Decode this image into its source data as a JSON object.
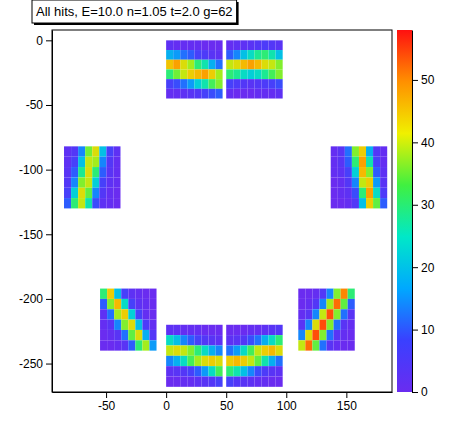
{
  "chart_data": {
    "type": "heatmap",
    "title": "All hits, E=10.0 n=1.05 t=2.0 g=62",
    "xlim": [
      -95,
      188
    ],
    "xticks": [
      -50,
      0,
      50,
      100,
      150
    ],
    "ylim": [
      -272,
      8
    ],
    "yticks": [
      0,
      -50,
      -100,
      -150,
      -200,
      -250
    ],
    "colorbar": {
      "zlim": [
        0,
        58
      ],
      "zticks": [
        0,
        10,
        20,
        30,
        40,
        50
      ]
    },
    "panels": [
      {
        "x": [
          0,
          47
        ],
        "y": [
          -45,
          0
        ],
        "cells": [
          [
            2,
            1,
            1,
            1,
            1,
            0,
            0,
            0
          ],
          [
            18,
            16,
            12,
            10,
            6,
            5,
            3,
            2
          ],
          [
            45,
            48,
            42,
            38,
            30,
            26,
            18,
            12
          ],
          [
            30,
            35,
            40,
            44,
            46,
            48,
            44,
            38
          ],
          [
            6,
            8,
            12,
            16,
            22,
            26,
            32,
            36
          ],
          [
            1,
            1,
            2,
            3,
            4,
            6,
            8,
            10
          ]
        ]
      },
      {
        "x": [
          50,
          97
        ],
        "y": [
          -45,
          0
        ],
        "cells": [
          [
            1,
            2,
            2,
            3,
            4,
            5,
            4,
            3
          ],
          [
            10,
            14,
            20,
            24,
            28,
            30,
            26,
            20
          ],
          [
            40,
            42,
            46,
            48,
            46,
            42,
            40,
            36
          ],
          [
            30,
            28,
            24,
            22,
            24,
            28,
            32,
            36
          ],
          [
            6,
            5,
            4,
            3,
            4,
            5,
            6,
            8
          ],
          [
            1,
            0,
            0,
            0,
            1,
            1,
            1,
            2
          ]
        ]
      },
      {
        "x": [
          -85,
          -38
        ],
        "y": [
          -130,
          -82
        ],
        "cells": [
          [
            2,
            4,
            14,
            35,
            42,
            20,
            6,
            2
          ],
          [
            2,
            6,
            20,
            40,
            38,
            14,
            4,
            1
          ],
          [
            3,
            10,
            28,
            42,
            30,
            10,
            3,
            1
          ],
          [
            4,
            14,
            36,
            40,
            22,
            6,
            2,
            1
          ],
          [
            6,
            22,
            42,
            34,
            14,
            4,
            1,
            0
          ],
          [
            10,
            30,
            40,
            26,
            8,
            2,
            1,
            0
          ]
        ]
      },
      {
        "x": [
          137,
          184
        ],
        "y": [
          -130,
          -82
        ],
        "cells": [
          [
            1,
            3,
            12,
            36,
            44,
            18,
            4,
            1
          ],
          [
            1,
            3,
            10,
            30,
            48,
            26,
            6,
            1
          ],
          [
            1,
            2,
            6,
            22,
            46,
            36,
            10,
            2
          ],
          [
            0,
            1,
            4,
            14,
            40,
            44,
            16,
            3
          ],
          [
            0,
            1,
            2,
            8,
            30,
            48,
            24,
            5
          ],
          [
            0,
            0,
            1,
            4,
            20,
            44,
            34,
            10
          ]
        ]
      },
      {
        "x": [
          -55,
          -8
        ],
        "y": [
          -240,
          -192
        ],
        "cells": [
          [
            30,
            44,
            20,
            6,
            2,
            1,
            0,
            0
          ],
          [
            10,
            36,
            46,
            24,
            6,
            2,
            1,
            0
          ],
          [
            2,
            12,
            38,
            44,
            22,
            6,
            1,
            0
          ],
          [
            1,
            3,
            14,
            36,
            42,
            20,
            5,
            1
          ],
          [
            0,
            1,
            3,
            12,
            34,
            42,
            18,
            4
          ],
          [
            0,
            0,
            1,
            3,
            10,
            30,
            38,
            16
          ]
        ]
      },
      {
        "x": [
          110,
          157
        ],
        "y": [
          -240,
          -192
        ],
        "cells": [
          [
            0,
            0,
            1,
            4,
            14,
            36,
            50,
            30
          ],
          [
            0,
            1,
            4,
            14,
            38,
            52,
            34,
            10
          ],
          [
            1,
            3,
            14,
            40,
            54,
            36,
            12,
            3
          ],
          [
            3,
            14,
            42,
            54,
            36,
            12,
            3,
            1
          ],
          [
            14,
            42,
            54,
            36,
            12,
            3,
            1,
            0
          ],
          [
            40,
            52,
            34,
            12,
            3,
            1,
            0,
            0
          ]
        ]
      },
      {
        "x": [
          0,
          47
        ],
        "y": [
          -268,
          -220
        ],
        "cells": [
          [
            2,
            2,
            1,
            1,
            1,
            0,
            0,
            0
          ],
          [
            24,
            20,
            14,
            10,
            6,
            4,
            3,
            2
          ],
          [
            40,
            42,
            40,
            36,
            30,
            24,
            18,
            14
          ],
          [
            14,
            18,
            24,
            32,
            38,
            42,
            44,
            42
          ],
          [
            2,
            3,
            4,
            6,
            10,
            16,
            24,
            32
          ],
          [
            0,
            0,
            1,
            1,
            2,
            3,
            4,
            6
          ]
        ]
      },
      {
        "x": [
          50,
          97
        ],
        "y": [
          -268,
          -220
        ],
        "cells": [
          [
            0,
            0,
            0,
            1,
            1,
            2,
            3,
            4
          ],
          [
            2,
            3,
            4,
            8,
            12,
            18,
            24,
            30
          ],
          [
            12,
            16,
            24,
            32,
            40,
            44,
            46,
            42
          ],
          [
            44,
            46,
            44,
            40,
            34,
            26,
            18,
            12
          ],
          [
            30,
            26,
            20,
            14,
            8,
            5,
            3,
            2
          ],
          [
            6,
            4,
            3,
            2,
            1,
            1,
            0,
            0
          ]
        ]
      }
    ]
  }
}
